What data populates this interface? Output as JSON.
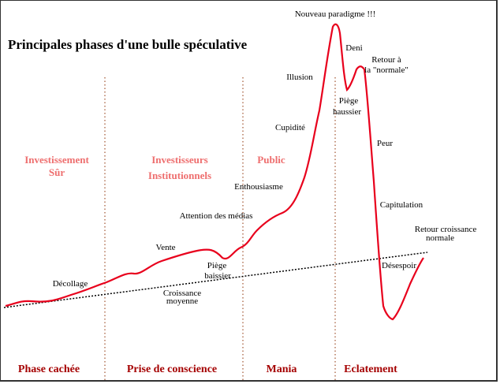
{
  "title": "Principales phases d'une bulle spéculative",
  "groups": [
    [
      "Investissement",
      "Sûr"
    ],
    [
      "Investisseurs",
      "Institutionnels"
    ],
    [
      "Public"
    ]
  ],
  "phases": [
    "Phase cachée",
    "Prise de conscience",
    "Mania",
    "Eclatement"
  ],
  "annotations": [
    [
      "Nouveau paradigme !!!"
    ],
    [
      "Deni"
    ],
    [
      "Retour  à",
      "la \"normale\""
    ],
    [
      "Illusion"
    ],
    [
      "Piège",
      "haussier"
    ],
    [
      "Cupidité"
    ],
    [
      "Peur"
    ],
    [
      "Enthousiasme"
    ],
    [
      "Capitulation"
    ],
    [
      "Attention des médias"
    ],
    [
      "Retour croissance",
      "normale"
    ],
    [
      "Vente"
    ],
    [
      "Piège",
      "baissier"
    ],
    [
      "Désespoir"
    ],
    [
      "Décollage"
    ],
    [
      "Croissance",
      "moyenne"
    ]
  ]
}
